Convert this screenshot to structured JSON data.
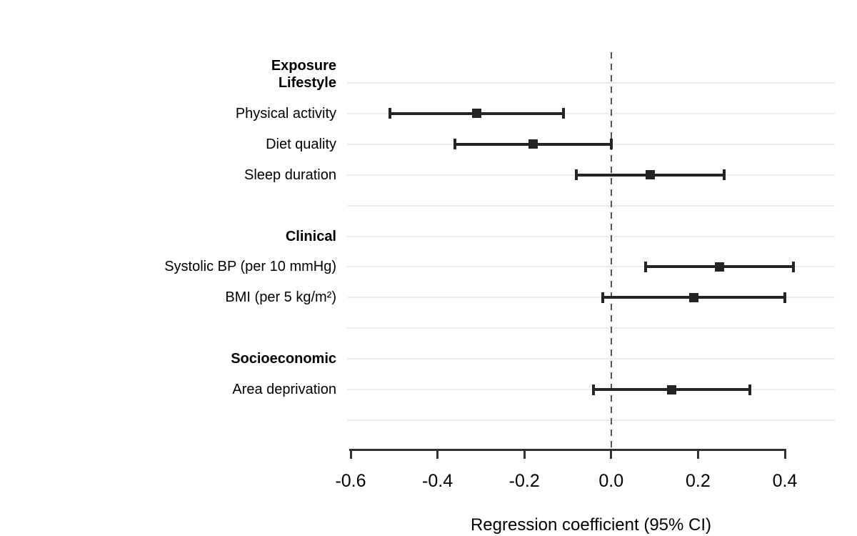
{
  "chart_data": {
    "type": "forest",
    "column_header": "Exposure",
    "xlabel": "Regression coefficient (95% CI)",
    "x_ticks": [
      {
        "value": -0.6,
        "label": "-0.6"
      },
      {
        "value": -0.4,
        "label": "-0.4"
      },
      {
        "value": -0.2,
        "label": "-0.2"
      },
      {
        "value": 0.0,
        "label": "0.0"
      },
      {
        "value": 0.2,
        "label": "0.2"
      },
      {
        "value": 0.4,
        "label": "0.4"
      }
    ],
    "xlim": [
      -0.61,
      0.52
    ],
    "zero_reference": 0.0,
    "grid": true,
    "groups": [
      {
        "label": "Lifestyle",
        "rows": [
          {
            "label": "Physical activity",
            "estimate": -0.31,
            "ci_low": -0.51,
            "ci_high": -0.11
          },
          {
            "label": "Diet quality",
            "estimate": -0.18,
            "ci_low": -0.36,
            "ci_high": 0.0
          },
          {
            "label": "Sleep duration",
            "estimate": 0.09,
            "ci_low": -0.08,
            "ci_high": 0.26
          }
        ]
      },
      {
        "label": "Clinical",
        "rows": [
          {
            "label": "Systolic BP (per 10 mmHg)",
            "estimate": 0.25,
            "ci_low": 0.08,
            "ci_high": 0.42
          },
          {
            "label": "BMI (per 5 kg/m²)",
            "estimate": 0.19,
            "ci_low": -0.02,
            "ci_high": 0.4
          }
        ]
      },
      {
        "label": "Socioeconomic",
        "rows": [
          {
            "label": "Area deprivation",
            "estimate": 0.14,
            "ci_low": -0.04,
            "ci_high": 0.32
          }
        ]
      }
    ],
    "colors": {
      "ci": "#242424",
      "marker": "#242424",
      "gridline": "#ececec",
      "zero_line": "#565656",
      "axis": "#333333",
      "text": "#000000"
    }
  }
}
